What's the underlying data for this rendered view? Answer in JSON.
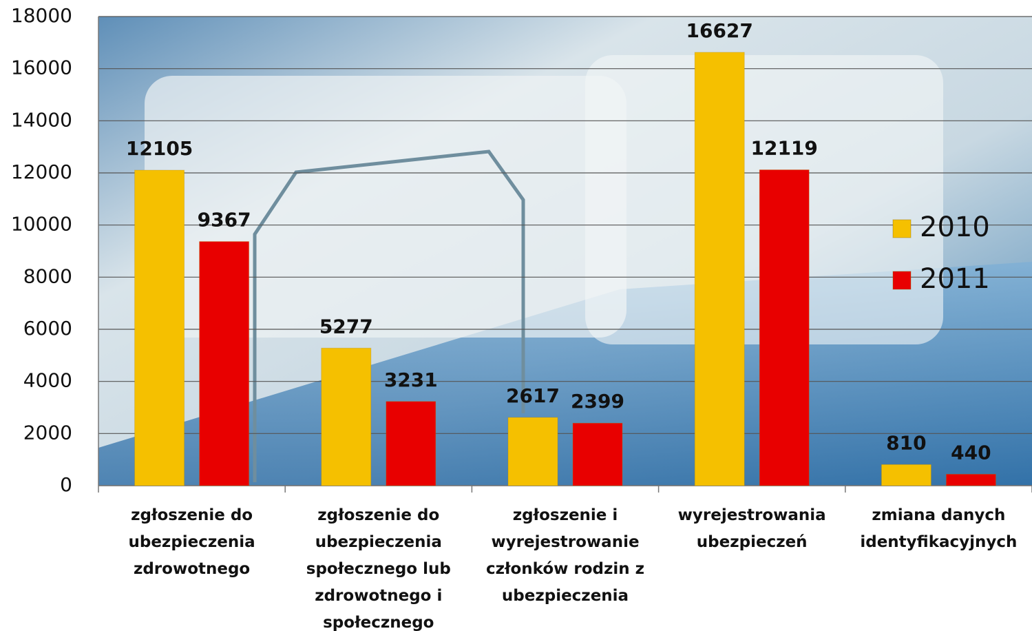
{
  "chart_data": {
    "type": "bar",
    "categories": [
      "zgłoszenie do ubezpieczenia zdrowotnego",
      "zgłoszenie do ubezpieczenia społecznego lub zdrowotnego i społecznego",
      "zgłoszenie i wyrejestrowanie członków rodzin z ubezpieczenia",
      "wyrejestrowania ubezpieczeń",
      "zmiana danych identyfikacyjnych"
    ],
    "series": [
      {
        "name": "2010",
        "color": "#f5c000",
        "values": [
          12105,
          5277,
          2617,
          16627,
          810
        ]
      },
      {
        "name": "2011",
        "color": "#e80000",
        "values": [
          9367,
          3231,
          2399,
          12119,
          440
        ]
      }
    ],
    "ylim": [
      0,
      18000
    ],
    "yticks": [
      0,
      2000,
      4000,
      6000,
      8000,
      10000,
      12000,
      14000,
      16000,
      18000
    ],
    "grid": true,
    "legend": "right"
  }
}
